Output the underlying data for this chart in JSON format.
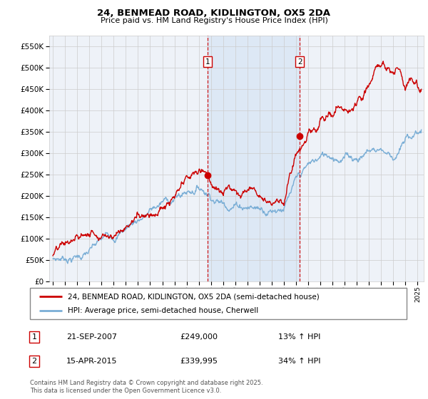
{
  "title": "24, BENMEAD ROAD, KIDLINGTON, OX5 2DA",
  "subtitle": "Price paid vs. HM Land Registry's House Price Index (HPI)",
  "legend_line1": "24, BENMEAD ROAD, KIDLINGTON, OX5 2DA (semi-detached house)",
  "legend_line2": "HPI: Average price, semi-detached house, Cherwell",
  "event1_date": "21-SEP-2007",
  "event1_price": "£249,000",
  "event1_hpi": "13% ↑ HPI",
  "event1_year": 2007.72,
  "event1_val": 249000,
  "event2_date": "15-APR-2015",
  "event2_price": "£339,995",
  "event2_hpi": "34% ↑ HPI",
  "event2_year": 2015.3,
  "event2_val": 339995,
  "footer": "Contains HM Land Registry data © Crown copyright and database right 2025.\nThis data is licensed under the Open Government Licence v3.0.",
  "red_color": "#cc0000",
  "blue_color": "#7aaed6",
  "highlight_color": "#dde8f5",
  "background_color": "#ffffff",
  "plot_bg_color": "#eef2f8",
  "grid_color": "#cccccc",
  "ylim_min": 0,
  "ylim_max": 575000,
  "yticks": [
    0,
    50000,
    100000,
    150000,
    200000,
    250000,
    300000,
    350000,
    400000,
    450000,
    500000,
    550000
  ],
  "xlim_min": 1994.7,
  "xlim_max": 2025.5
}
